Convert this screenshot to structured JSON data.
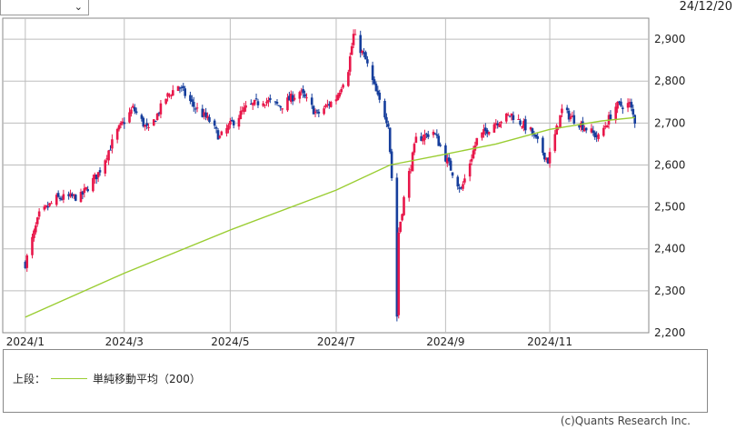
{
  "header": {
    "period_select_value": "",
    "chevron_icon": "chevron-down-icon",
    "date": "24/12/20"
  },
  "legend": {
    "section_label": "上段：",
    "series_label": "単純移動平均（200）",
    "series_color": "#9acd32"
  },
  "footer": {
    "copyright": "(c)Quants Research Inc."
  },
  "colors": {
    "up": "#e8174a",
    "down": "#163e9c",
    "ma": "#9acd32",
    "grid": "#bdbdbd"
  },
  "chart_data": {
    "type": "candlestick",
    "x_ticks": [
      "2024/1",
      "2024/3",
      "2024/5",
      "2024/7",
      "2024/9",
      "2024/11"
    ],
    "y_ticks": [
      "2,200",
      "2,300",
      "2,400",
      "2,500",
      "2,600",
      "2,700",
      "2,800",
      "2,900"
    ],
    "ylim": [
      2200,
      2950
    ],
    "grid": true,
    "price_path": [
      [
        "2024-01-04",
        2365
      ],
      [
        "2024-01-12",
        2480
      ],
      [
        "2024-01-22",
        2520
      ],
      [
        "2024-02-05",
        2525
      ],
      [
        "2024-02-15",
        2580
      ],
      [
        "2024-02-26",
        2680
      ],
      [
        "2024-03-06",
        2735
      ],
      [
        "2024-03-15",
        2680
      ],
      [
        "2024-03-25",
        2760
      ],
      [
        "2024-04-01",
        2790
      ],
      [
        "2024-04-10",
        2740
      ],
      [
        "2024-04-19",
        2705
      ],
      [
        "2024-04-25",
        2665
      ],
      [
        "2024-05-02",
        2700
      ],
      [
        "2024-05-10",
        2735
      ],
      [
        "2024-05-20",
        2755
      ],
      [
        "2024-05-30",
        2740
      ],
      [
        "2024-06-10",
        2775
      ],
      [
        "2024-06-20",
        2720
      ],
      [
        "2024-07-01",
        2760
      ],
      [
        "2024-07-08",
        2830
      ],
      [
        "2024-07-11",
        2910
      ],
      [
        "2024-07-18",
        2850
      ],
      [
        "2024-07-25",
        2760
      ],
      [
        "2024-07-31",
        2700
      ],
      [
        "2024-08-02",
        2570
      ],
      [
        "2024-08-05",
        2240
      ],
      [
        "2024-08-06",
        2440
      ],
      [
        "2024-08-09",
        2520
      ],
      [
        "2024-08-16",
        2660
      ],
      [
        "2024-08-26",
        2680
      ],
      [
        "2024-09-04",
        2600
      ],
      [
        "2024-09-11",
        2540
      ],
      [
        "2024-09-20",
        2660
      ],
      [
        "2024-09-30",
        2700
      ],
      [
        "2024-10-10",
        2720
      ],
      [
        "2024-10-21",
        2680
      ],
      [
        "2024-10-31",
        2610
      ],
      [
        "2024-11-08",
        2730
      ],
      [
        "2024-11-18",
        2700
      ],
      [
        "2024-11-29",
        2665
      ],
      [
        "2024-12-09",
        2740
      ],
      [
        "2024-12-17",
        2745
      ],
      [
        "2024-12-20",
        2705
      ]
    ],
    "ma200_path": [
      [
        "2024-01-04",
        2237
      ],
      [
        "2024-03-01",
        2342
      ],
      [
        "2024-05-01",
        2445
      ],
      [
        "2024-07-01",
        2540
      ],
      [
        "2024-08-01",
        2600
      ],
      [
        "2024-09-01",
        2625
      ],
      [
        "2024-10-01",
        2650
      ],
      [
        "2024-11-01",
        2685
      ],
      [
        "2024-12-01",
        2705
      ],
      [
        "2024-12-20",
        2713
      ]
    ]
  }
}
